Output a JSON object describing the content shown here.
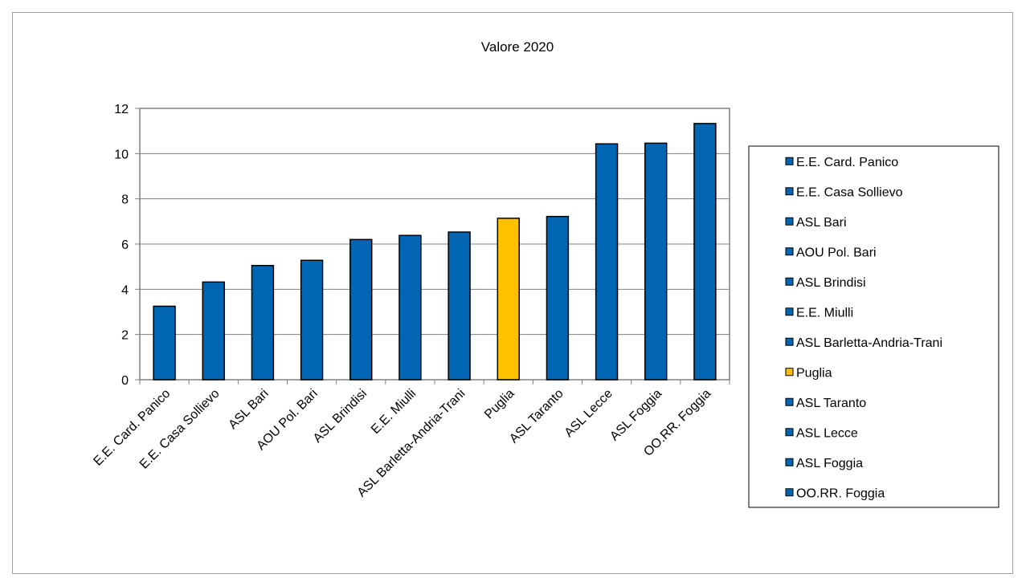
{
  "chart_data": {
    "type": "bar",
    "title": "Valore 2020",
    "xlabel": "",
    "ylabel": "",
    "categories": [
      "E.E. Card. Panico",
      "E.E. Casa Sollievo",
      "ASL Bari",
      "AOU Pol. Bari",
      "ASL Brindisi",
      "E.E. Miulli",
      "ASL Barletta-Andria-Trani",
      "Puglia",
      "ASL Taranto",
      "ASL Lecce",
      "ASL Foggia",
      "OO.RR. Foggia"
    ],
    "values": [
      3.25,
      4.32,
      5.05,
      5.28,
      6.2,
      6.38,
      6.53,
      7.14,
      7.22,
      10.43,
      10.46,
      11.33
    ],
    "colors": [
      "#0066b3",
      "#0066b3",
      "#0066b3",
      "#0066b3",
      "#0066b3",
      "#0066b3",
      "#0066b3",
      "#ffc000",
      "#0066b3",
      "#0066b3",
      "#0066b3",
      "#0066b3"
    ],
    "ylim": [
      0,
      12
    ],
    "yticks": [
      0,
      2,
      4,
      6,
      8,
      10,
      12
    ],
    "ytick_labels": [
      "0",
      "2",
      "4",
      "6",
      "8",
      "10",
      "12"
    ],
    "grid": true,
    "legend": {
      "placement": "right",
      "entries": [
        "E.E. Card. Panico",
        "E.E. Casa Sollievo",
        "ASL Bari",
        "AOU Pol. Bari",
        "ASL Brindisi",
        "E.E. Miulli",
        "ASL Barletta-Andria-Trani",
        "Puglia",
        "ASL Taranto",
        "ASL Lecce",
        "ASL Foggia",
        "OO.RR. Foggia"
      ]
    }
  }
}
